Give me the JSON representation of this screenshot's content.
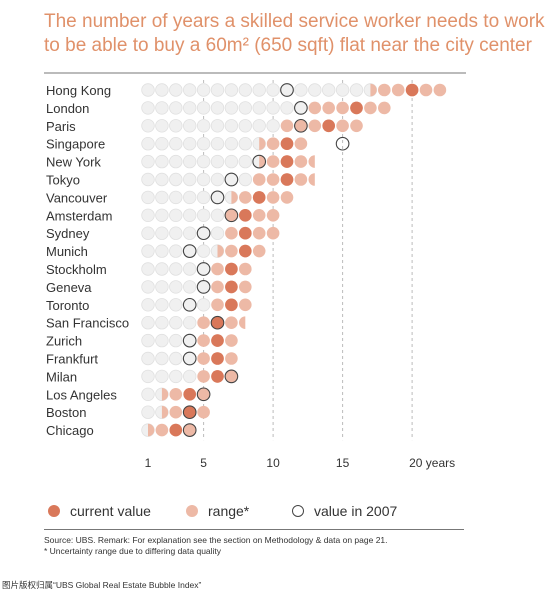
{
  "title_line1": "The number of years a skilled service worker needs to work",
  "title_line2": "to be able to buy a 60m² (650 sqft) flat near the city center",
  "legend": {
    "current": "current value",
    "range": "range*",
    "y2007": "value in 2007"
  },
  "source_line1": "Source: UBS. Remark: For explanation see the section on Methodology & data on page 21.",
  "source_line2": "* Uncertainty range due to differing data quality",
  "credit": "图片版权归属“UBS Global Real Estate Bubble Index”",
  "colors": {
    "current": "#d9785a",
    "range": "#edb9a6",
    "empty": "#f0f0f0",
    "empty_stroke": "#e0e0e0",
    "ring": "#444444",
    "title": "#e0916a",
    "grid": "#bbbbbb"
  },
  "chart_data": {
    "type": "dot",
    "x_ticks": [
      1,
      5,
      10,
      15,
      20
    ],
    "x_tick_labels": [
      "1",
      "5",
      "10",
      "15",
      "20 years"
    ],
    "xlim": [
      0.5,
      22
    ],
    "categories": [
      "Hong Kong",
      "London",
      "Paris",
      "Singapore",
      "New York",
      "Tokyo",
      "Vancouver",
      "Amsterdam",
      "Sydney",
      "Munich",
      "Stockholm",
      "Geneva",
      "Toronto",
      "San Francisco",
      "Zurich",
      "Frankfurt",
      "Milan",
      "Los Angeles",
      "Boston",
      "Chicago"
    ],
    "series": [
      {
        "name": "current value",
        "values": [
          20,
          16,
          14,
          11,
          11,
          11,
          9,
          8,
          8,
          8,
          7,
          7,
          7,
          6,
          6,
          6,
          6,
          4,
          4,
          3
        ]
      },
      {
        "name": "range*",
        "values": [
          [
            17.5,
            22
          ],
          [
            13,
            18
          ],
          [
            11,
            16
          ],
          [
            9.5,
            12
          ],
          [
            9.5,
            12.5
          ],
          [
            9,
            12.5
          ],
          [
            7.5,
            11
          ],
          [
            7,
            10
          ],
          [
            7,
            10
          ],
          [
            6.5,
            9
          ],
          [
            6,
            8
          ],
          [
            6,
            8
          ],
          [
            6,
            8
          ],
          [
            5,
            7.5
          ],
          [
            5,
            7
          ],
          [
            5,
            7
          ],
          [
            5,
            7
          ],
          [
            2.5,
            5
          ],
          [
            2.5,
            5
          ],
          [
            1.5,
            4
          ]
        ]
      },
      {
        "name": "value in 2007",
        "values": [
          11,
          12,
          12,
          15,
          9,
          7,
          6,
          7,
          5,
          4,
          5,
          5,
          4,
          6,
          4,
          4,
          7,
          5,
          4,
          4
        ]
      }
    ]
  }
}
